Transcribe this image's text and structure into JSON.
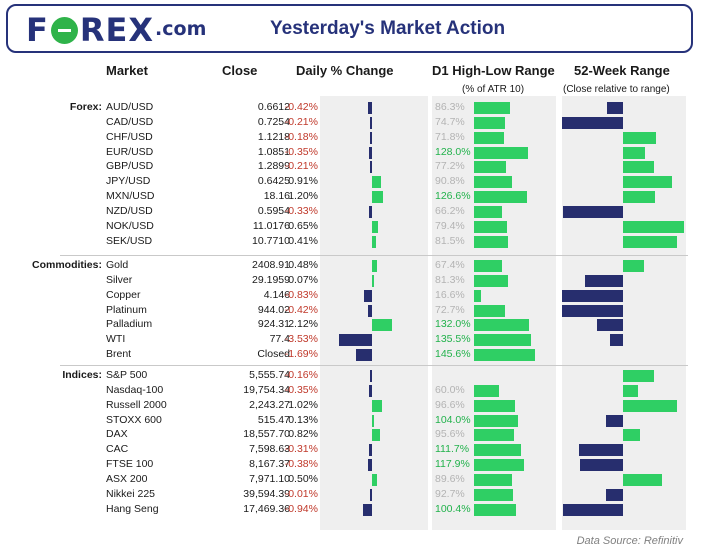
{
  "header": {
    "logo_text_pre": "F",
    "logo_text_post": "REX",
    "logo_suffix": ".com",
    "title": "Yesterday's Market Action"
  },
  "columns": {
    "market": "Market",
    "close": "Close",
    "daily_change": "Daily % Change",
    "d1_range": "D1 High-Low Range",
    "d1_range_sub": "(% of ATR 10)",
    "week52": "52-Week Range",
    "week52_sub": "(Close relative to range)"
  },
  "groups": [
    {
      "label": "Forex:",
      "rows": [
        {
          "market": "AUD/USD",
          "close": "0.6612",
          "change": "-0.42%",
          "change_value": -0.42,
          "atr": "86.3%",
          "atr_value": 86.3,
          "range52": -0.26
        },
        {
          "market": "CAD/USD",
          "close": "0.7254",
          "change": "-0.21%",
          "change_value": -0.21,
          "atr": "74.7%",
          "atr_value": 74.7,
          "range52": -1.0
        },
        {
          "market": "CHF/USD",
          "close": "1.1218",
          "change": "-0.18%",
          "change_value": -0.18,
          "atr": "71.8%",
          "atr_value": 71.8,
          "range52": 0.54
        },
        {
          "market": "EUR/USD",
          "close": "1.0851",
          "change": "-0.35%",
          "change_value": -0.35,
          "atr": "128.0%",
          "atr_value": 128.0,
          "range52": 0.36
        },
        {
          "market": "GBP/USD",
          "close": "1.2899",
          "change": "-0.21%",
          "change_value": -0.21,
          "atr": "77.2%",
          "atr_value": 77.2,
          "range52": 0.5
        },
        {
          "market": "JPY/USD",
          "close": "0.6425",
          "change": "0.91%",
          "change_value": 0.91,
          "atr": "90.8%",
          "atr_value": 90.8,
          "range52": 0.8
        },
        {
          "market": "MXN/USD",
          "close": "18.16",
          "change": "1.20%",
          "change_value": 1.2,
          "atr": "126.6%",
          "atr_value": 126.6,
          "range52": 0.52
        },
        {
          "market": "NZD/USD",
          "close": "0.5954",
          "change": "-0.33%",
          "change_value": -0.33,
          "atr": "66.2%",
          "atr_value": 66.2,
          "range52": -0.98
        },
        {
          "market": "NOK/USD",
          "close": "11.0176",
          "change": "0.65%",
          "change_value": 0.65,
          "atr": "79.4%",
          "atr_value": 79.4,
          "range52": 1.0
        },
        {
          "market": "SEK/USD",
          "close": "10.7710",
          "change": "0.41%",
          "change_value": 0.41,
          "atr": "81.5%",
          "atr_value": 81.5,
          "range52": 0.88
        }
      ]
    },
    {
      "label": "Commodities:",
      "rows": [
        {
          "market": "Gold",
          "close": "2408.91",
          "change": "0.48%",
          "change_value": 0.48,
          "atr": "67.4%",
          "atr_value": 67.4,
          "range52": 0.35
        },
        {
          "market": "Silver",
          "close": "29.1959",
          "change": "0.07%",
          "change_value": 0.07,
          "atr": "81.3%",
          "atr_value": 81.3,
          "range52": -0.62
        },
        {
          "market": "Copper",
          "close": "4.146",
          "change": "-0.83%",
          "change_value": -0.83,
          "atr": "16.6%",
          "atr_value": 16.6,
          "range52": -1.0
        },
        {
          "market": "Platinum",
          "close": "944.02",
          "change": "-0.42%",
          "change_value": -0.42,
          "atr": "72.7%",
          "atr_value": 72.7,
          "range52": -1.0
        },
        {
          "market": "Palladium",
          "close": "924.31",
          "change": "2.12%",
          "change_value": 2.12,
          "atr": "132.0%",
          "atr_value": 132.0,
          "range52": -0.42
        },
        {
          "market": "WTI",
          "close": "77.4",
          "change": "-3.53%",
          "change_value": -3.53,
          "atr": "135.5%",
          "atr_value": 135.5,
          "range52": -0.22
        },
        {
          "market": "Brent",
          "close": "Closed",
          "change": "-1.69%",
          "change_value": -1.69,
          "atr": "145.6%",
          "atr_value": 145.6,
          "range52": 0
        }
      ]
    },
    {
      "label": "Indices:",
      "rows": [
        {
          "market": "S&P 500",
          "close": "5,555.74",
          "change": "-0.16%",
          "change_value": -0.16,
          "atr": "",
          "atr_value": 0,
          "range52": 0.5
        },
        {
          "market": "Nasdaq-100",
          "close": "19,754.34",
          "change": "-0.35%",
          "change_value": -0.35,
          "atr": "60.0%",
          "atr_value": 60.0,
          "range52": 0.24
        },
        {
          "market": "Russell 2000",
          "close": "2,243.27",
          "change": "1.02%",
          "change_value": 1.02,
          "atr": "96.6%",
          "atr_value": 96.6,
          "range52": 0.88
        },
        {
          "market": "STOXX 600",
          "close": "515.47",
          "change": "0.13%",
          "change_value": 0.13,
          "atr": "104.0%",
          "atr_value": 104.0,
          "range52": -0.28
        },
        {
          "market": "DAX",
          "close": "18,557.70",
          "change": "0.82%",
          "change_value": 0.82,
          "atr": "95.6%",
          "atr_value": 95.6,
          "range52": 0.28
        },
        {
          "market": "CAC",
          "close": "7,598.63",
          "change": "-0.31%",
          "change_value": -0.31,
          "atr": "111.7%",
          "atr_value": 111.7,
          "range52": -0.72
        },
        {
          "market": "FTSE 100",
          "close": "8,167.37",
          "change": "-0.38%",
          "change_value": -0.38,
          "atr": "117.9%",
          "atr_value": 117.9,
          "range52": -0.7
        },
        {
          "market": "ASX 200",
          "close": "7,971.10",
          "change": "0.50%",
          "change_value": 0.5,
          "atr": "89.6%",
          "atr_value": 89.6,
          "range52": 0.64
        },
        {
          "market": "Nikkei 225",
          "close": "39,594.39",
          "change": "-0.01%",
          "change_value": -0.01,
          "atr": "92.7%",
          "atr_value": 92.7,
          "range52": -0.28
        },
        {
          "market": "Hang Seng",
          "close": "17,469.36",
          "change": "-0.94%",
          "change_value": -0.94,
          "atr": "100.4%",
          "atr_value": 100.4,
          "range52": -0.98
        }
      ]
    }
  ],
  "colors": {
    "positive_bar": "#2fcf64",
    "negative_bar": "#272e6e",
    "negative_text": "#c0392b",
    "atr_high_text": "#22b24c"
  },
  "source": "Data Source: Refinitiv"
}
